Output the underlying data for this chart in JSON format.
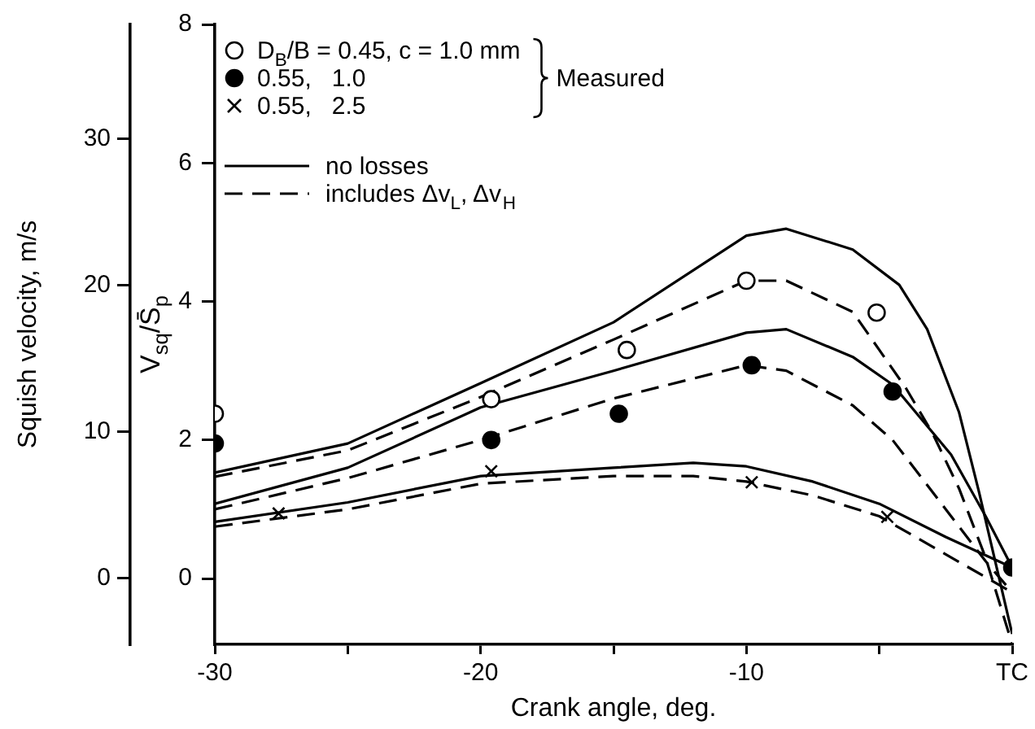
{
  "chart_data": {
    "type": "line",
    "xlabel": "Crank angle, deg.",
    "ylabel": "V$_{sq}$/S̄$_{p}$",
    "y2label": "Squish velocity, m/s",
    "annotations": [
      "Measured"
    ],
    "xlim": [
      -30,
      0
    ],
    "xticks": [
      -30,
      {
        "value": -25,
        "label": null
      },
      -20,
      {
        "value": -15,
        "label": null
      },
      -10,
      {
        "value": -5,
        "label": null
      },
      {
        "value": 0,
        "label": "TC"
      }
    ],
    "ylim": [
      -0.95,
      8
    ],
    "yticks": [
      0,
      2,
      4,
      6,
      8
    ],
    "y2lim": [
      -4.5,
      37.8
    ],
    "y2ticks": [
      0,
      10,
      20,
      30
    ],
    "grid": false,
    "legend": "top left",
    "series": [
      {
        "name": "D$_{B}$/B = 0.45, c = 1.0 mm",
        "type": "scatter",
        "marker": "circle",
        "color": "#ffffff",
        "x": [
          -30,
          -19.6,
          -14.5,
          -10,
          -5.1
        ],
        "values": [
          2.38,
          2.59,
          3.3,
          4.3,
          3.84
        ]
      },
      {
        "name": "0.55,   1.0",
        "type": "scatter",
        "marker": "circle",
        "color": "#000000",
        "x": [
          -30,
          -19.6,
          -14.8,
          -9.8,
          -4.5,
          0
        ],
        "values": [
          1.95,
          2.0,
          2.38,
          3.08,
          2.7,
          0.16
        ]
      },
      {
        "name": "0.55,   2.5",
        "type": "scatter",
        "marker": "cross",
        "color": "#000000",
        "x": [
          -27.6,
          -19.6,
          -9.8,
          -4.7
        ],
        "values": [
          0.94,
          1.55,
          1.39,
          0.89
        ]
      },
      {
        "name": "no losses",
        "type": "line",
        "marker": "none",
        "line_style": "solid",
        "color": "#000000",
        "x": [
          -30,
          -25,
          -20,
          -15,
          -10,
          -8.5,
          -6,
          -4.25,
          -3.2,
          -2,
          -1.25,
          0
        ],
        "values": [
          1.53,
          1.95,
          2.82,
          3.7,
          4.95,
          5.05,
          4.75,
          4.24,
          3.6,
          2.4,
          1.25,
          -0.8
        ]
      },
      {
        "name": "includes Δv$_{L}$, Δv$_{H}$",
        "type": "line",
        "marker": "none",
        "line_style": "dashed",
        "color": "#000000",
        "x": [
          -30,
          -25,
          -20,
          -15,
          -10,
          -8.5,
          -6,
          -5,
          -4,
          -3,
          -2,
          -1,
          0
        ],
        "values": [
          1.47,
          1.85,
          2.62,
          3.45,
          4.3,
          4.3,
          3.85,
          3.3,
          2.75,
          2.1,
          1.3,
          0.3,
          -0.95
        ]
      },
      {
        "type": "line",
        "marker": "none",
        "line_style": "solid",
        "color": "#000000",
        "x": [
          -30,
          -25,
          -20,
          -15,
          -10,
          -8.5,
          -6,
          -4.5,
          -2.3,
          -1,
          0
        ],
        "values": [
          1.08,
          1.6,
          2.47,
          3.0,
          3.55,
          3.6,
          3.2,
          2.8,
          1.79,
          0.9,
          0.16
        ]
      },
      {
        "type": "line",
        "marker": "none",
        "line_style": "dashed",
        "color": "#000000",
        "x": [
          -30,
          -25,
          -20,
          -15,
          -10,
          -8.5,
          -6,
          -4.5,
          -2.5,
          -1,
          0
        ],
        "values": [
          1.0,
          1.45,
          2.0,
          2.6,
          3.08,
          3.0,
          2.5,
          2.0,
          1.0,
          0.25,
          -0.2
        ]
      },
      {
        "type": "line",
        "marker": "none",
        "line_style": "solid",
        "color": "#000000",
        "x": [
          -30,
          -25,
          -20,
          -15,
          -12,
          -10,
          -7.5,
          -5,
          -2.5,
          0
        ],
        "values": [
          0.82,
          1.1,
          1.48,
          1.6,
          1.67,
          1.62,
          1.4,
          1.08,
          0.6,
          0.16
        ]
      },
      {
        "type": "line",
        "marker": "none",
        "line_style": "dashed",
        "color": "#000000",
        "x": [
          -30,
          -25,
          -20,
          -15,
          -12,
          -10,
          -7.5,
          -5,
          -2.5,
          0
        ],
        "values": [
          0.75,
          1.0,
          1.37,
          1.48,
          1.48,
          1.4,
          1.2,
          0.9,
          0.35,
          -0.2
        ]
      }
    ]
  }
}
